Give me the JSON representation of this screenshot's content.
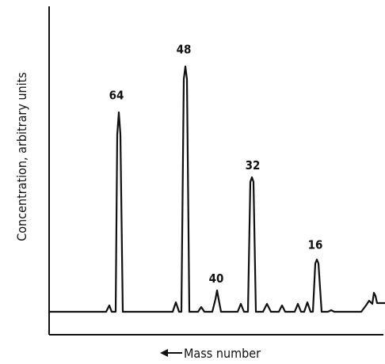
{
  "chart_data": {
    "type": "line",
    "title": "",
    "xlabel": "Mass number",
    "xlabel_arrow": "left",
    "ylabel": "Concentration, arbitrary units",
    "x_direction": "decreasing",
    "peaks": [
      {
        "label": "64",
        "mass": 64,
        "value": 0.67
      },
      {
        "label": "48",
        "mass": 48,
        "value": 0.82
      },
      {
        "label": "40",
        "mass": 40,
        "value": 0.07
      },
      {
        "label": "32",
        "mass": 32,
        "value": 0.44
      },
      {
        "label": "16",
        "mass": 16,
        "value": 0.18
      }
    ],
    "grid": false,
    "legend": "none"
  }
}
